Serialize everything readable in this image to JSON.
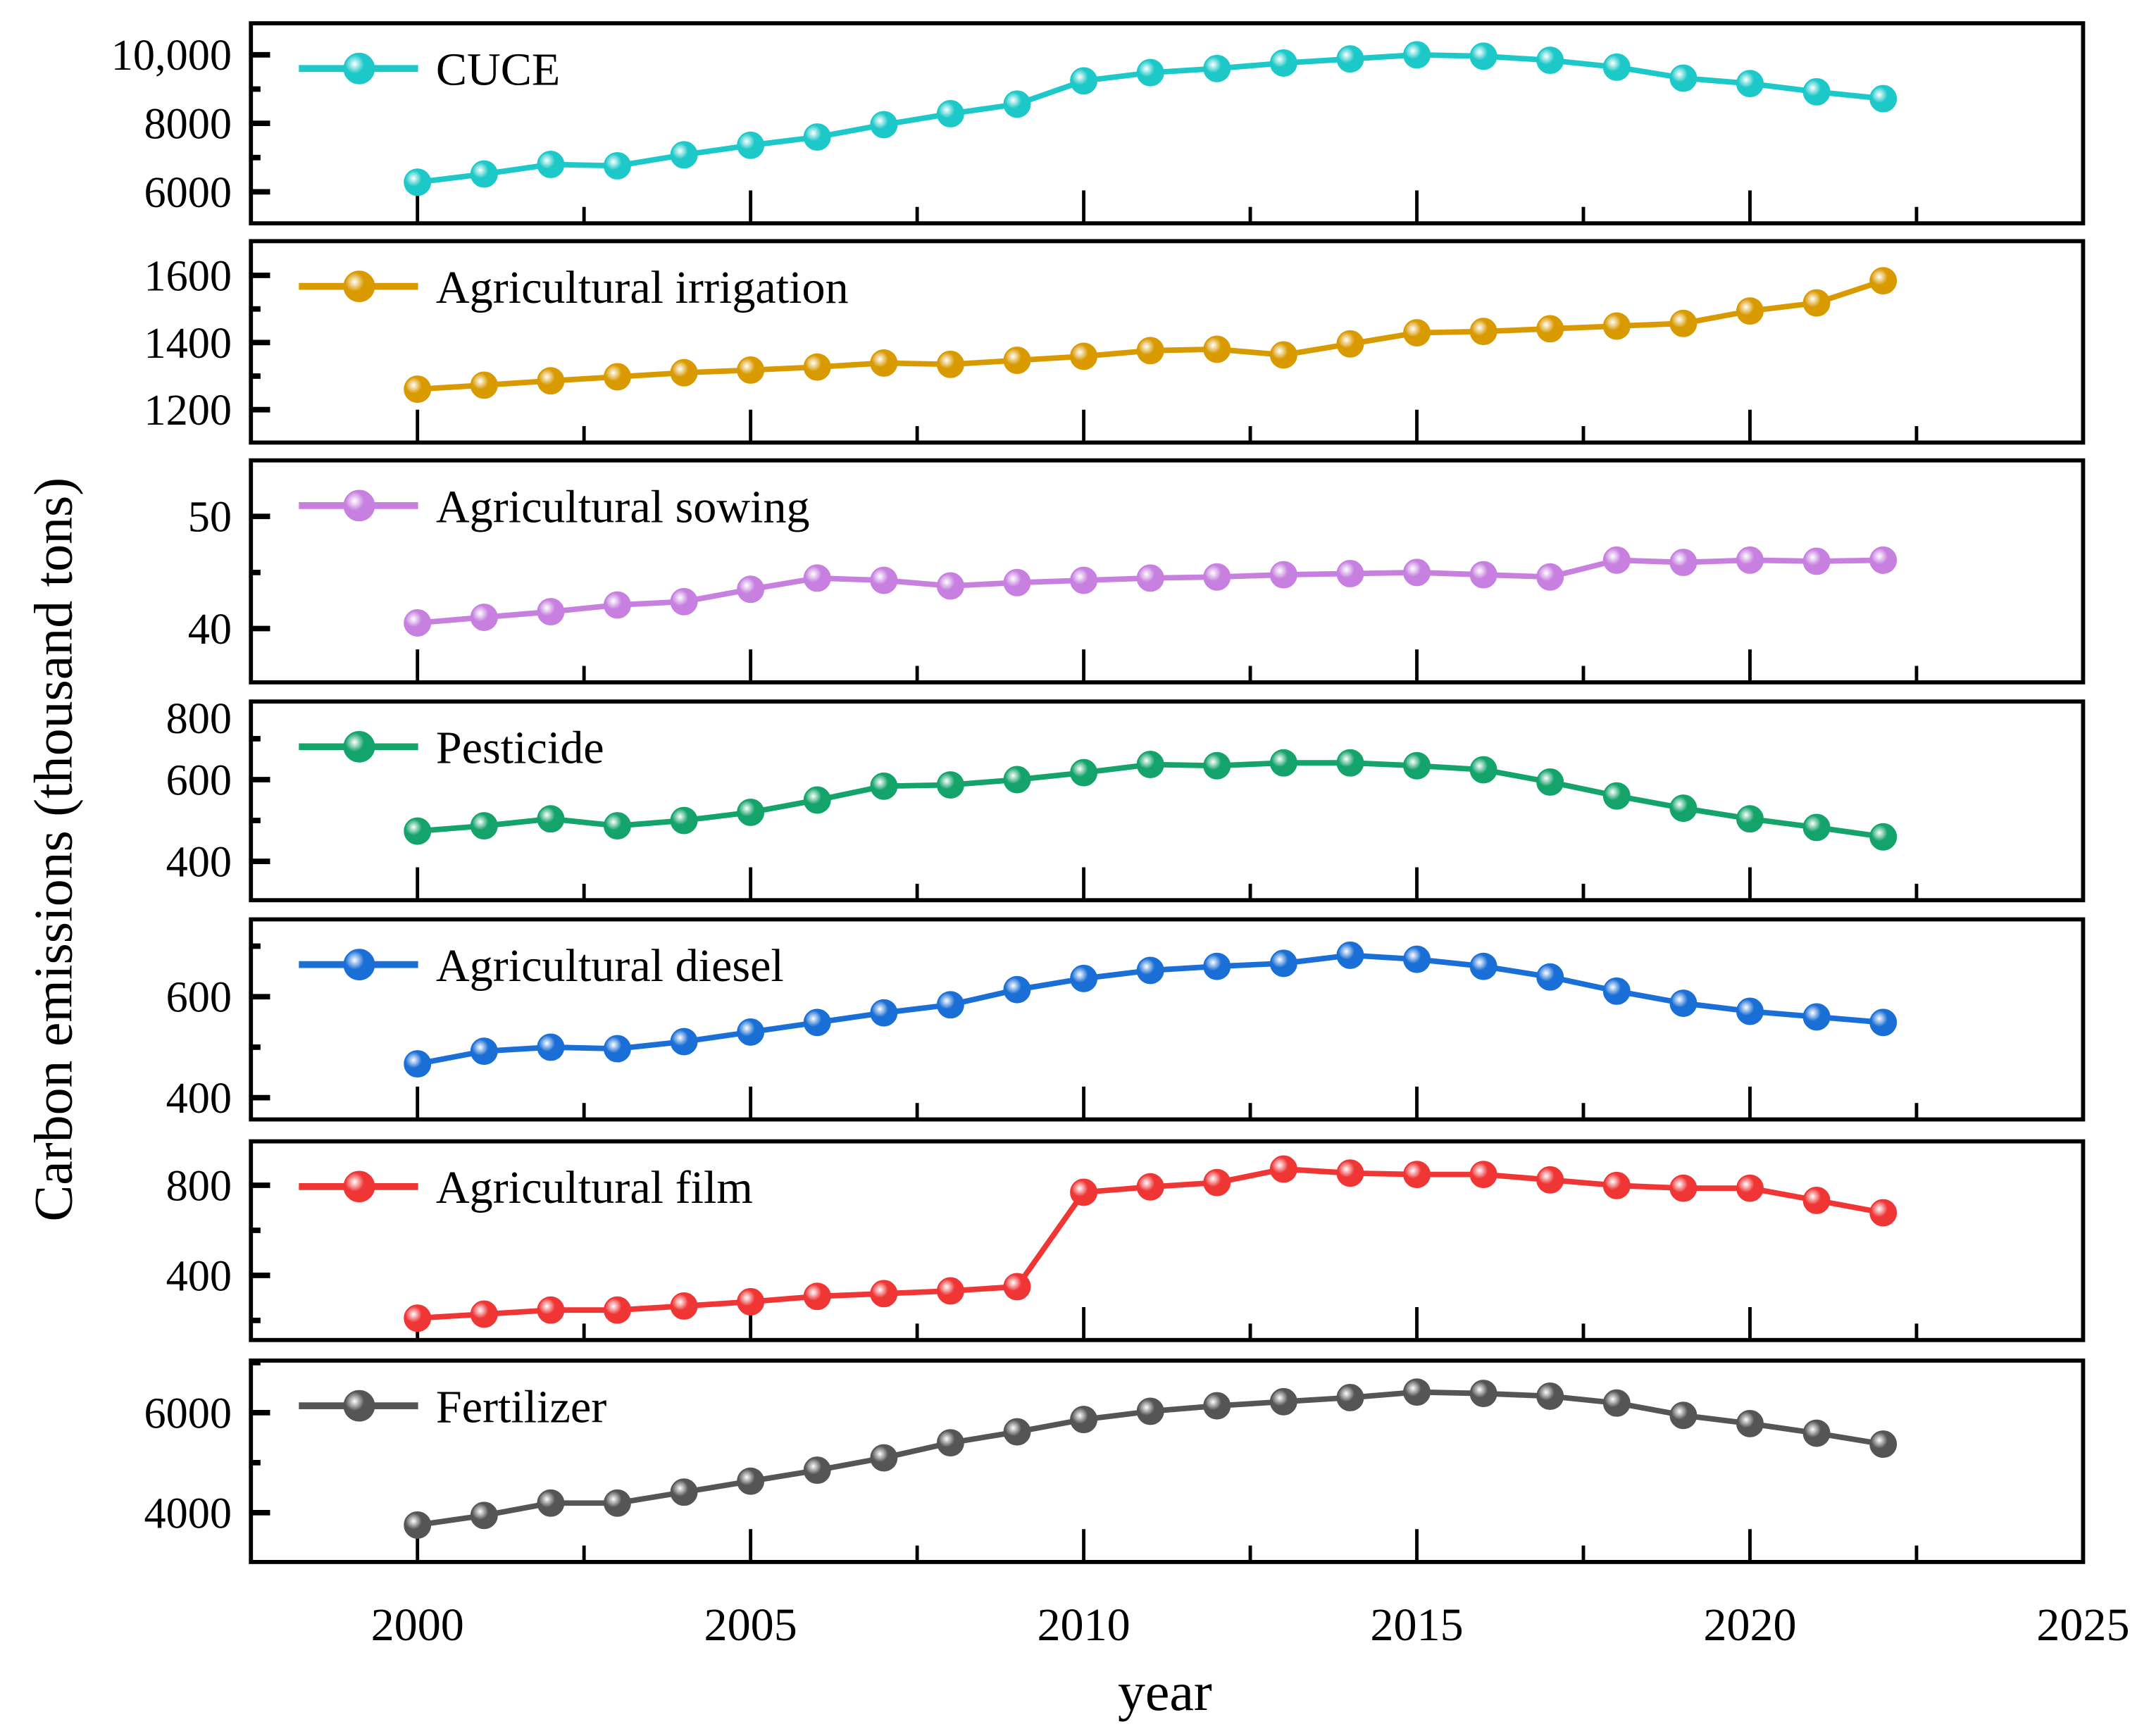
{
  "chart_data": {
    "type": "line",
    "xlabel": "year",
    "ylabel": "Carbon emissions (thousand tons)",
    "xlim": [
      1997.5,
      2025
    ],
    "x_ticks": [
      2000,
      2005,
      2010,
      2015,
      2020,
      2025
    ],
    "x_tick_labels": [
      "2000",
      "2005",
      "2010",
      "2015",
      "2020",
      "2025"
    ],
    "grid": false,
    "legend_placement": "top-left",
    "x": [
      2000,
      2001,
      2002,
      2003,
      2004,
      2005,
      2006,
      2007,
      2008,
      2009,
      2010,
      2011,
      2012,
      2013,
      2014,
      2015,
      2016,
      2017,
      2018,
      2019,
      2020,
      2021,
      2022
    ],
    "panels": [
      {
        "name": "CUCE",
        "color": "#1cc8c8",
        "ylim": [
          5080,
          10920
        ],
        "y_ticks": [
          10000,
          8000,
          6000
        ],
        "y_tick_labels": [
          "10,000",
          "8000",
          "6000"
        ],
        "values": [
          6280,
          6520,
          6800,
          6760,
          7080,
          7360,
          7600,
          7960,
          8280,
          8560,
          9240,
          9480,
          9600,
          9760,
          9880,
          10000,
          9960,
          9840,
          9640,
          9320,
          9160,
          8920,
          8720
        ]
      },
      {
        "name": "Agricultural irrigation",
        "color": "#d99a00",
        "ylim": [
          1102,
          1702
        ],
        "y_ticks": [
          1600,
          1400,
          1200
        ],
        "y_tick_labels": [
          "1600",
          "1400",
          "1200"
        ],
        "values": [
          1261,
          1273,
          1286,
          1298,
          1310,
          1318,
          1327,
          1339,
          1335,
          1347,
          1359,
          1376,
          1380,
          1363,
          1396,
          1429,
          1433,
          1441,
          1449,
          1457,
          1494,
          1518,
          1584
        ]
      },
      {
        "name": "Agricultural sowing",
        "color": "#c77fe0",
        "ylim": [
          35.2,
          55
        ],
        "y_ticks": [
          50,
          40
        ],
        "y_tick_labels": [
          "50",
          "40"
        ],
        "values": [
          40.5,
          41.0,
          41.5,
          42.1,
          42.4,
          43.5,
          44.5,
          44.3,
          43.8,
          44.1,
          44.3,
          44.5,
          44.6,
          44.8,
          44.9,
          45.0,
          44.8,
          44.6,
          46.1,
          45.9,
          46.1,
          46.0,
          46.1
        ]
      },
      {
        "name": "Pesticide",
        "color": "#13a36b",
        "ylim": [
          305,
          791
        ],
        "y_ticks": [
          800,
          600,
          400
        ],
        "y_tick_labels": [
          "800",
          "600",
          "400"
        ],
        "values": [
          474,
          487,
          504,
          487,
          500,
          520,
          550,
          584,
          587,
          600,
          617,
          637,
          634,
          641,
          641,
          634,
          624,
          594,
          560,
          530,
          504,
          483,
          460
        ]
      },
      {
        "name": "Agricultural diesel",
        "color": "#1a6fd6",
        "ylim": [
          357,
          753
        ],
        "y_ticks": [
          600,
          400
        ],
        "y_tick_labels": [
          "600",
          "400"
        ],
        "values": [
          467,
          492,
          500,
          497,
          511,
          530,
          549,
          568,
          584,
          614,
          636,
          652,
          660,
          666,
          682,
          674,
          660,
          639,
          611,
          587,
          571,
          560,
          549
        ]
      },
      {
        "name": "Agricultural film",
        "color": "#f03535",
        "ylim": [
          113,
          995
        ],
        "y_ticks": [
          800,
          400
        ],
        "y_tick_labels": [
          "800",
          "400"
        ],
        "values": [
          210,
          228,
          246,
          246,
          264,
          283,
          307,
          319,
          331,
          350,
          769,
          793,
          812,
          872,
          854,
          848,
          848,
          824,
          799,
          787,
          787,
          733,
          678
        ]
      },
      {
        "name": "Fertilizer",
        "color": "#555555",
        "ylim": [
          3014,
          7041
        ],
        "y_ticks": [
          6000,
          4000
        ],
        "y_tick_labels": [
          "6000",
          "4000"
        ],
        "values": [
          3753,
          3945,
          4192,
          4192,
          4411,
          4630,
          4849,
          5096,
          5397,
          5616,
          5863,
          6027,
          6137,
          6219,
          6301,
          6411,
          6384,
          6329,
          6192,
          5945,
          5781,
          5589,
          5370
        ]
      }
    ]
  }
}
